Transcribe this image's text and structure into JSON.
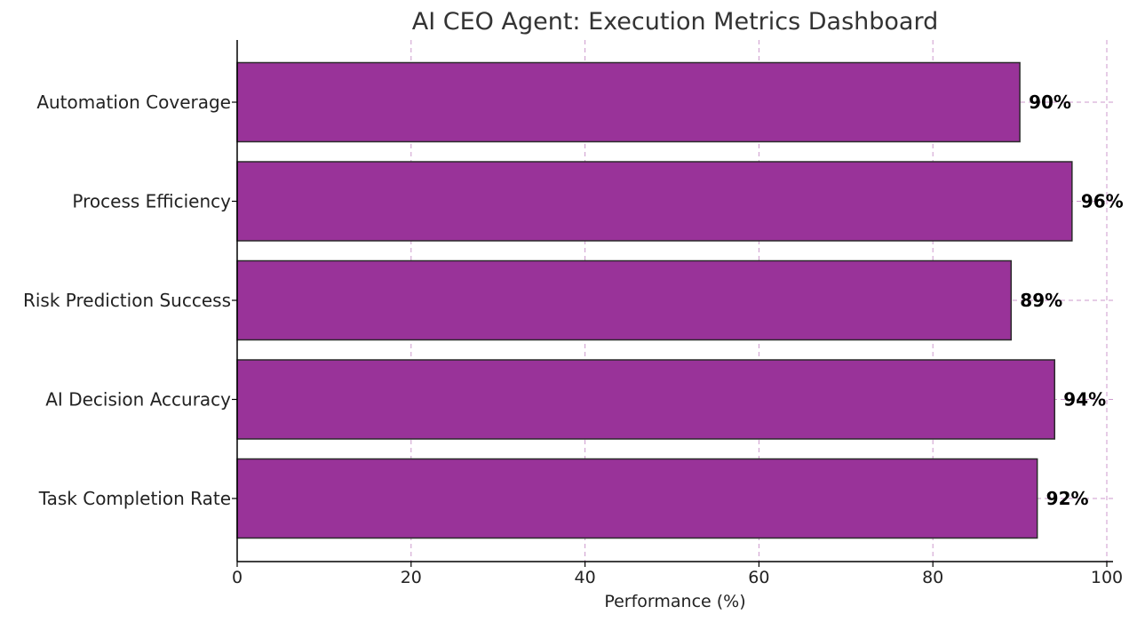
{
  "chart_data": {
    "type": "bar",
    "orientation": "horizontal",
    "title": "AI CEO Agent: Execution Metrics Dashboard",
    "xlabel": "Performance (%)",
    "ylabel": "",
    "xlim": [
      0,
      100
    ],
    "x_ticks": [
      0,
      20,
      40,
      60,
      80,
      100
    ],
    "x_tick_labels": [
      "0",
      "20",
      "40",
      "60",
      "80",
      "100"
    ],
    "categories": [
      "Task Completion Rate",
      "AI Decision Accuracy",
      "Risk Prediction Success",
      "Process Efficiency",
      "Automation Coverage"
    ],
    "values": [
      92,
      94,
      89,
      96,
      90
    ],
    "data_labels": [
      "92%",
      "94%",
      "89%",
      "96%",
      "90%"
    ],
    "grid": true,
    "grid_style": "dashed",
    "legend": "none",
    "colors": {
      "bar_fill": "#993399",
      "bar_edge": "#2b2b2b",
      "grid": "#cc99cc"
    }
  }
}
